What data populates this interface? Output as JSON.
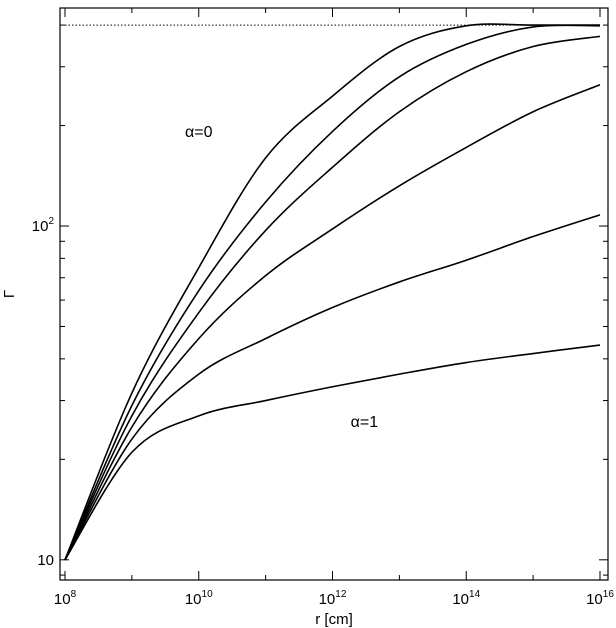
{
  "chart_data": {
    "type": "line",
    "title": "",
    "xlabel": "r [cm]",
    "ylabel": "Γ",
    "xscale": "log",
    "yscale": "log",
    "xlim": [
      100000000.0,
      1e+16
    ],
    "ylim": [
      8.7,
      450
    ],
    "grid": false,
    "x_tick_labels": [
      {
        "base": "10",
        "exp": "8",
        "value": 100000000.0
      },
      {
        "base": "10",
        "exp": "10",
        "value": 10000000000.0
      },
      {
        "base": "10",
        "exp": "12",
        "value": 1000000000000.0
      },
      {
        "base": "10",
        "exp": "14",
        "value": 100000000000000.0
      },
      {
        "base": "10",
        "exp": "16",
        "value": 1e+16
      }
    ],
    "y_tick_labels": [
      {
        "base": "10",
        "exp": "",
        "value": 10
      },
      {
        "base": "10",
        "exp": "2",
        "value": 100
      }
    ],
    "reference_line": {
      "y": 400,
      "style": "dotted"
    },
    "annotations": [
      {
        "text": "α=0",
        "x": 10000000000.0,
        "y": 185
      },
      {
        "text": "α=1",
        "x": 3000000000000.0,
        "y": 25
      }
    ],
    "series": [
      {
        "x": [
          100000000.0,
          1000000000.0,
          10000000000.0,
          100000000000.0,
          1000000000000.0,
          10000000000000.0,
          100000000000000.0,
          1000000000000000.0,
          1e+16
        ],
        "values": [
          10,
          31.6,
          75,
          160,
          245,
          345,
          398,
          400,
          400
        ]
      },
      {
        "x": [
          100000000.0,
          1000000000.0,
          10000000000.0,
          100000000000.0,
          1000000000000.0,
          10000000000000.0,
          100000000000000.0,
          1000000000000000.0,
          1e+16
        ],
        "values": [
          10,
          29,
          64,
          118,
          192,
          280,
          350,
          395,
          398
        ]
      },
      {
        "x": [
          100000000.0,
          1000000000.0,
          10000000000.0,
          100000000000.0,
          1000000000000.0,
          10000000000000.0,
          100000000000000.0,
          1000000000000000.0,
          1e+16
        ],
        "values": [
          10,
          27,
          55,
          97,
          150,
          220,
          290,
          345,
          370
        ]
      },
      {
        "x": [
          100000000.0,
          1000000000.0,
          10000000000.0,
          100000000000.0,
          1000000000000.0,
          10000000000000.0,
          100000000000000.0,
          1000000000000000.0,
          1e+16
        ],
        "values": [
          10,
          25,
          46,
          71,
          98,
          132,
          172,
          220,
          265
        ]
      },
      {
        "x": [
          100000000.0,
          1000000000.0,
          10000000000.0,
          100000000000.0,
          1000000000000.0,
          10000000000000.0,
          100000000000000.0,
          1000000000000000.0,
          1e+16
        ],
        "values": [
          10,
          23,
          36,
          46,
          57,
          68,
          79,
          93,
          108
        ]
      },
      {
        "x": [
          100000000.0,
          1000000000.0,
          10000000000.0,
          100000000000.0,
          1000000000000.0,
          10000000000000.0,
          100000000000000.0,
          1000000000000000.0,
          1e+16
        ],
        "values": [
          10,
          21,
          27,
          30,
          33,
          36,
          39,
          41.5,
          44
        ]
      }
    ]
  }
}
